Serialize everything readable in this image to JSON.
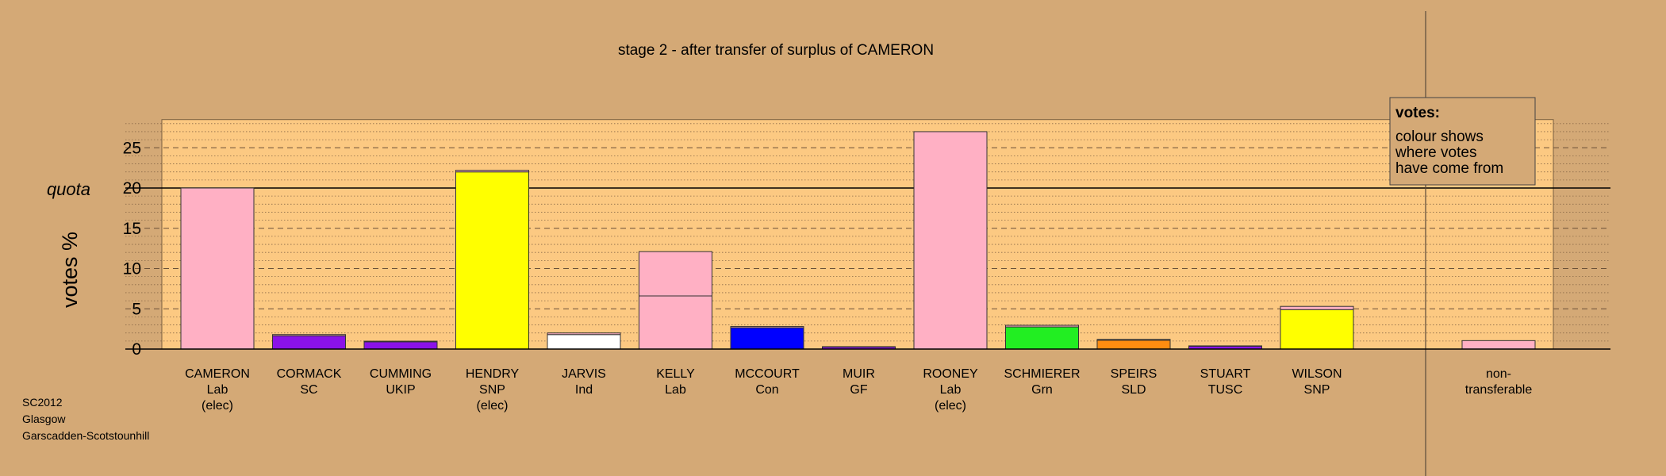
{
  "chart_data": {
    "type": "bar",
    "stacked": true,
    "title": "stage 2 - after transfer of surplus of CAMERON",
    "ylabel": "votes %",
    "ylim": [
      0,
      28.5
    ],
    "yticks": [
      0,
      5,
      10,
      15,
      20,
      25
    ],
    "quota": {
      "label": "quota",
      "value": 20
    },
    "colors": {
      "page_bg": "#d4a976",
      "plot_bg": "#fcc982",
      "lab": "#ffb0c4",
      "sc": "#8a12e8",
      "ukip": "#8a12e8",
      "snp": "#ffff00",
      "ind": "#ffffff",
      "con": "#0000ff",
      "gf": "#8a12e8",
      "grn": "#22ee22",
      "sld": "#ff8c10",
      "tusc": "#8a12e8"
    },
    "candidates": [
      {
        "name": "CAMERON",
        "party": "Lab",
        "status": "(elec)",
        "segments": [
          {
            "value": 20.0,
            "color": "#ffb0c4"
          }
        ]
      },
      {
        "name": "CORMACK",
        "party": "SC",
        "status": "",
        "segments": [
          {
            "value": 1.65,
            "color": "#8a12e8"
          },
          {
            "value": 0.15,
            "color": "#ffb0c4"
          }
        ]
      },
      {
        "name": "CUMMING",
        "party": "UKIP",
        "status": "",
        "segments": [
          {
            "value": 0.9,
            "color": "#8a12e8"
          },
          {
            "value": 0.08,
            "color": "#ffb0c4"
          }
        ]
      },
      {
        "name": "HENDRY",
        "party": "SNP",
        "status": "(elec)",
        "segments": [
          {
            "value": 22.0,
            "color": "#ffff00"
          },
          {
            "value": 0.2,
            "color": "#ffb0c4"
          }
        ]
      },
      {
        "name": "JARVIS",
        "party": "Ind",
        "status": "",
        "segments": [
          {
            "value": 1.8,
            "color": "#ffffff"
          },
          {
            "value": 0.2,
            "color": "#ffb0c4"
          }
        ]
      },
      {
        "name": "KELLY",
        "party": "Lab",
        "status": "",
        "segments": [
          {
            "value": 6.6,
            "color": "#ffb0c4"
          },
          {
            "value": 5.5,
            "color": "#ffb0c4"
          }
        ]
      },
      {
        "name": "MCCOURT",
        "party": "Con",
        "status": "",
        "segments": [
          {
            "value": 2.65,
            "color": "#0000ff"
          },
          {
            "value": 0.15,
            "color": "#ffb0c4"
          }
        ]
      },
      {
        "name": "MUIR",
        "party": "GF",
        "status": "",
        "segments": [
          {
            "value": 0.25,
            "color": "#8a12e8"
          },
          {
            "value": 0.05,
            "color": "#ffb0c4"
          }
        ]
      },
      {
        "name": "ROONEY",
        "party": "Lab",
        "status": "(elec)",
        "segments": [
          {
            "value": 27.0,
            "color": "#ffb0c4"
          }
        ]
      },
      {
        "name": "SCHMIERER",
        "party": "Grn",
        "status": "",
        "segments": [
          {
            "value": 2.75,
            "color": "#22ee22"
          },
          {
            "value": 0.2,
            "color": "#ffb0c4"
          }
        ]
      },
      {
        "name": "SPEIRS",
        "party": "SLD",
        "status": "",
        "segments": [
          {
            "value": 1.1,
            "color": "#ff8c10"
          },
          {
            "value": 0.1,
            "color": "#ffb0c4"
          }
        ]
      },
      {
        "name": "STUART",
        "party": "TUSC",
        "status": "",
        "segments": [
          {
            "value": 0.35,
            "color": "#8a12e8"
          },
          {
            "value": 0.05,
            "color": "#ffb0c4"
          }
        ]
      },
      {
        "name": "WILSON",
        "party": "SNP",
        "status": "",
        "segments": [
          {
            "value": 4.9,
            "color": "#ffff00"
          },
          {
            "value": 0.4,
            "color": "#ffb0c4"
          }
        ]
      }
    ],
    "nontransferable": {
      "label_line1": "non-",
      "label_line2": "transferable",
      "value": 1.05,
      "color": "#ffb0c4"
    },
    "legend": {
      "position": "top-right",
      "title": "votes:",
      "lines": [
        "colour shows",
        "where votes",
        "have come from"
      ]
    },
    "footer": {
      "lines": [
        "SC2012",
        "Glasgow",
        "Garscadden-Scotstounhill"
      ]
    }
  }
}
